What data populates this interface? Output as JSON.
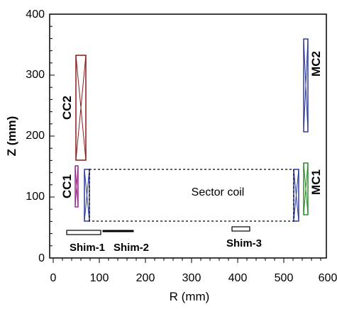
{
  "axes": {
    "x_label": "R (mm)",
    "y_label": "Z (mm)",
    "x_range": [
      0,
      600
    ],
    "y_range": [
      0,
      400
    ],
    "x_ticks": [
      "0",
      "100",
      "200",
      "300",
      "400",
      "500",
      "600"
    ],
    "y_ticks": [
      "0",
      "100",
      "200",
      "300",
      "400"
    ]
  },
  "coils": {
    "cc2": {
      "label": "CC2",
      "color": "#8b1a1a"
    },
    "cc1": {
      "label": "CC1",
      "color": "#9b2e8e"
    },
    "mc2": {
      "label": "MC2",
      "color": "#2e3c9c"
    },
    "mc1": {
      "label": "MC1",
      "color": "#2e8b2e"
    },
    "sector": {
      "label": "Sector coil",
      "color": "#2e3c9c"
    }
  },
  "shims": {
    "shim1": {
      "label": "Shim-1"
    },
    "shim2": {
      "label": "Shim-2"
    },
    "shim3": {
      "label": "Shim-3"
    }
  }
}
